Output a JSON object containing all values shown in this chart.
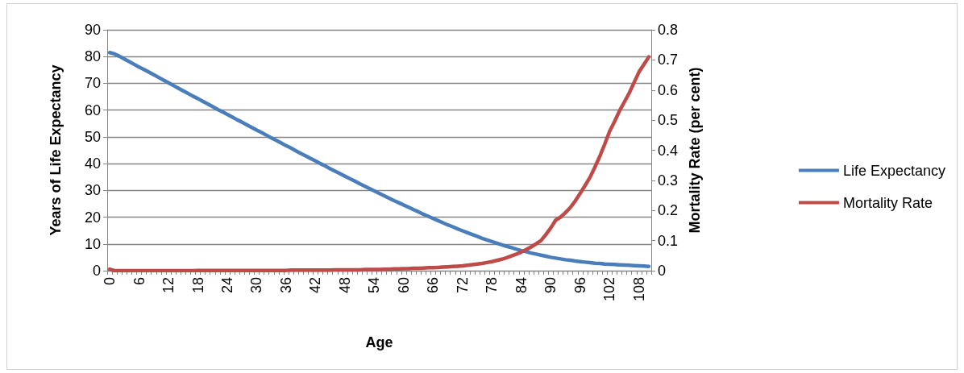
{
  "chart_data": {
    "type": "line",
    "xlabel": "Age",
    "ylabel": "Years of Life Expectancy",
    "y2label": "Mortality Rate (per cent)",
    "categories": [
      "0",
      null,
      null,
      null,
      null,
      null,
      "6",
      null,
      null,
      null,
      null,
      null,
      "12",
      null,
      null,
      null,
      null,
      null,
      "18",
      null,
      null,
      null,
      null,
      null,
      "24",
      null,
      null,
      null,
      null,
      null,
      "30",
      null,
      null,
      null,
      null,
      null,
      "36",
      null,
      null,
      null,
      null,
      null,
      "42",
      null,
      null,
      null,
      null,
      null,
      "48",
      null,
      null,
      null,
      null,
      null,
      "54",
      null,
      null,
      null,
      null,
      null,
      "60",
      null,
      null,
      null,
      null,
      null,
      "66",
      null,
      null,
      null,
      null,
      null,
      "72",
      null,
      null,
      null,
      null,
      null,
      "78",
      null,
      null,
      null,
      null,
      null,
      "84",
      null,
      null,
      null,
      null,
      null,
      "90",
      null,
      null,
      null,
      null,
      null,
      "96",
      null,
      null,
      null,
      null,
      null,
      "102",
      null,
      null,
      null,
      null,
      null,
      "108",
      null,
      null
    ],
    "series": [
      {
        "name": "Life Expectancy",
        "color": "#4a7ebb",
        "values": [
          81.5,
          81,
          80.1,
          79.1,
          78.1,
          77.1,
          76.1,
          75.2,
          74.2,
          73.2,
          72.2,
          71.2,
          70.2,
          69.2,
          68.2,
          67.2,
          66.2,
          65.2,
          64.3,
          63.3,
          62.3,
          61.3,
          60.3,
          59.4,
          58.4,
          57.4,
          56.4,
          55.5,
          54.5,
          53.5,
          52.5,
          51.6,
          50.6,
          49.6,
          48.7,
          47.7,
          46.7,
          45.8,
          44.8,
          43.8,
          42.9,
          41.9,
          41,
          40,
          39.1,
          38.1,
          37.2,
          36.3,
          35.3,
          34.4,
          33.5,
          32.5,
          31.6,
          30.7,
          29.8,
          28.9,
          28,
          27.1,
          26.2,
          25.4,
          24.5,
          23.7,
          22.8,
          22,
          21.1,
          20.3,
          19.5,
          18.7,
          17.9,
          17.1,
          16.4,
          15.6,
          14.9,
          14.2,
          13.5,
          12.8,
          12.1,
          11.5,
          10.9,
          10.3,
          9.7,
          9.1,
          8.6,
          8,
          7.5,
          7.1,
          6.6,
          6.2,
          5.8,
          5.4,
          5,
          4.7,
          4.4,
          4.1,
          3.9,
          3.6,
          3.4,
          3.2,
          3,
          2.8,
          2.7,
          2.5,
          2.4,
          2.3,
          2.2,
          2.1,
          2,
          1.9,
          1.8,
          1.7,
          1.6
        ]
      },
      {
        "name": "Mortality Rate",
        "color": "#be4b48",
        "axis": "y2",
        "values": [
          0.005,
          0,
          0,
          0,
          0,
          0,
          0,
          0,
          0,
          0,
          0,
          0,
          0,
          0,
          0,
          0,
          0,
          0,
          0.001,
          0.001,
          0.001,
          0.001,
          0.001,
          0.001,
          0.001,
          0.001,
          0.001,
          0.001,
          0.001,
          0.001,
          0.001,
          0.001,
          0.001,
          0.001,
          0.001,
          0.001,
          0.001,
          0.002,
          0.002,
          0.002,
          0.002,
          0.002,
          0.002,
          0.002,
          0.002,
          0.002,
          0.003,
          0.003,
          0.003,
          0.003,
          0.003,
          0.003,
          0.004,
          0.004,
          0.004,
          0.004,
          0.005,
          0.005,
          0.006,
          0.006,
          0.007,
          0.007,
          0.008,
          0.008,
          0.009,
          0.01,
          0.01,
          0.011,
          0.012,
          0.013,
          0.014,
          0.015,
          0.016,
          0.018,
          0.02,
          0.022,
          0.024,
          0.027,
          0.03,
          0.034,
          0.038,
          0.043,
          0.049,
          0.055,
          0.062,
          0.07,
          0.079,
          0.089,
          0.1,
          0.12,
          0.142,
          0.168,
          0.178,
          0.193,
          0.21,
          0.232,
          0.257,
          0.283,
          0.31,
          0.344,
          0.38,
          0.42,
          0.463,
          0.495,
          0.53,
          0.56,
          0.59,
          0.625,
          0.66,
          0.685,
          0.71
        ]
      }
    ],
    "ylim": [
      0,
      90
    ],
    "yticks": [
      0,
      10,
      20,
      30,
      40,
      50,
      60,
      70,
      80,
      90
    ],
    "y2lim": [
      0,
      0.8
    ],
    "y2ticks": [
      0,
      0.1,
      0.2,
      0.3,
      0.4,
      0.5,
      0.6,
      0.7,
      0.8
    ],
    "grid": "y",
    "legend": "right",
    "marker": "none",
    "line_style": "solid"
  }
}
